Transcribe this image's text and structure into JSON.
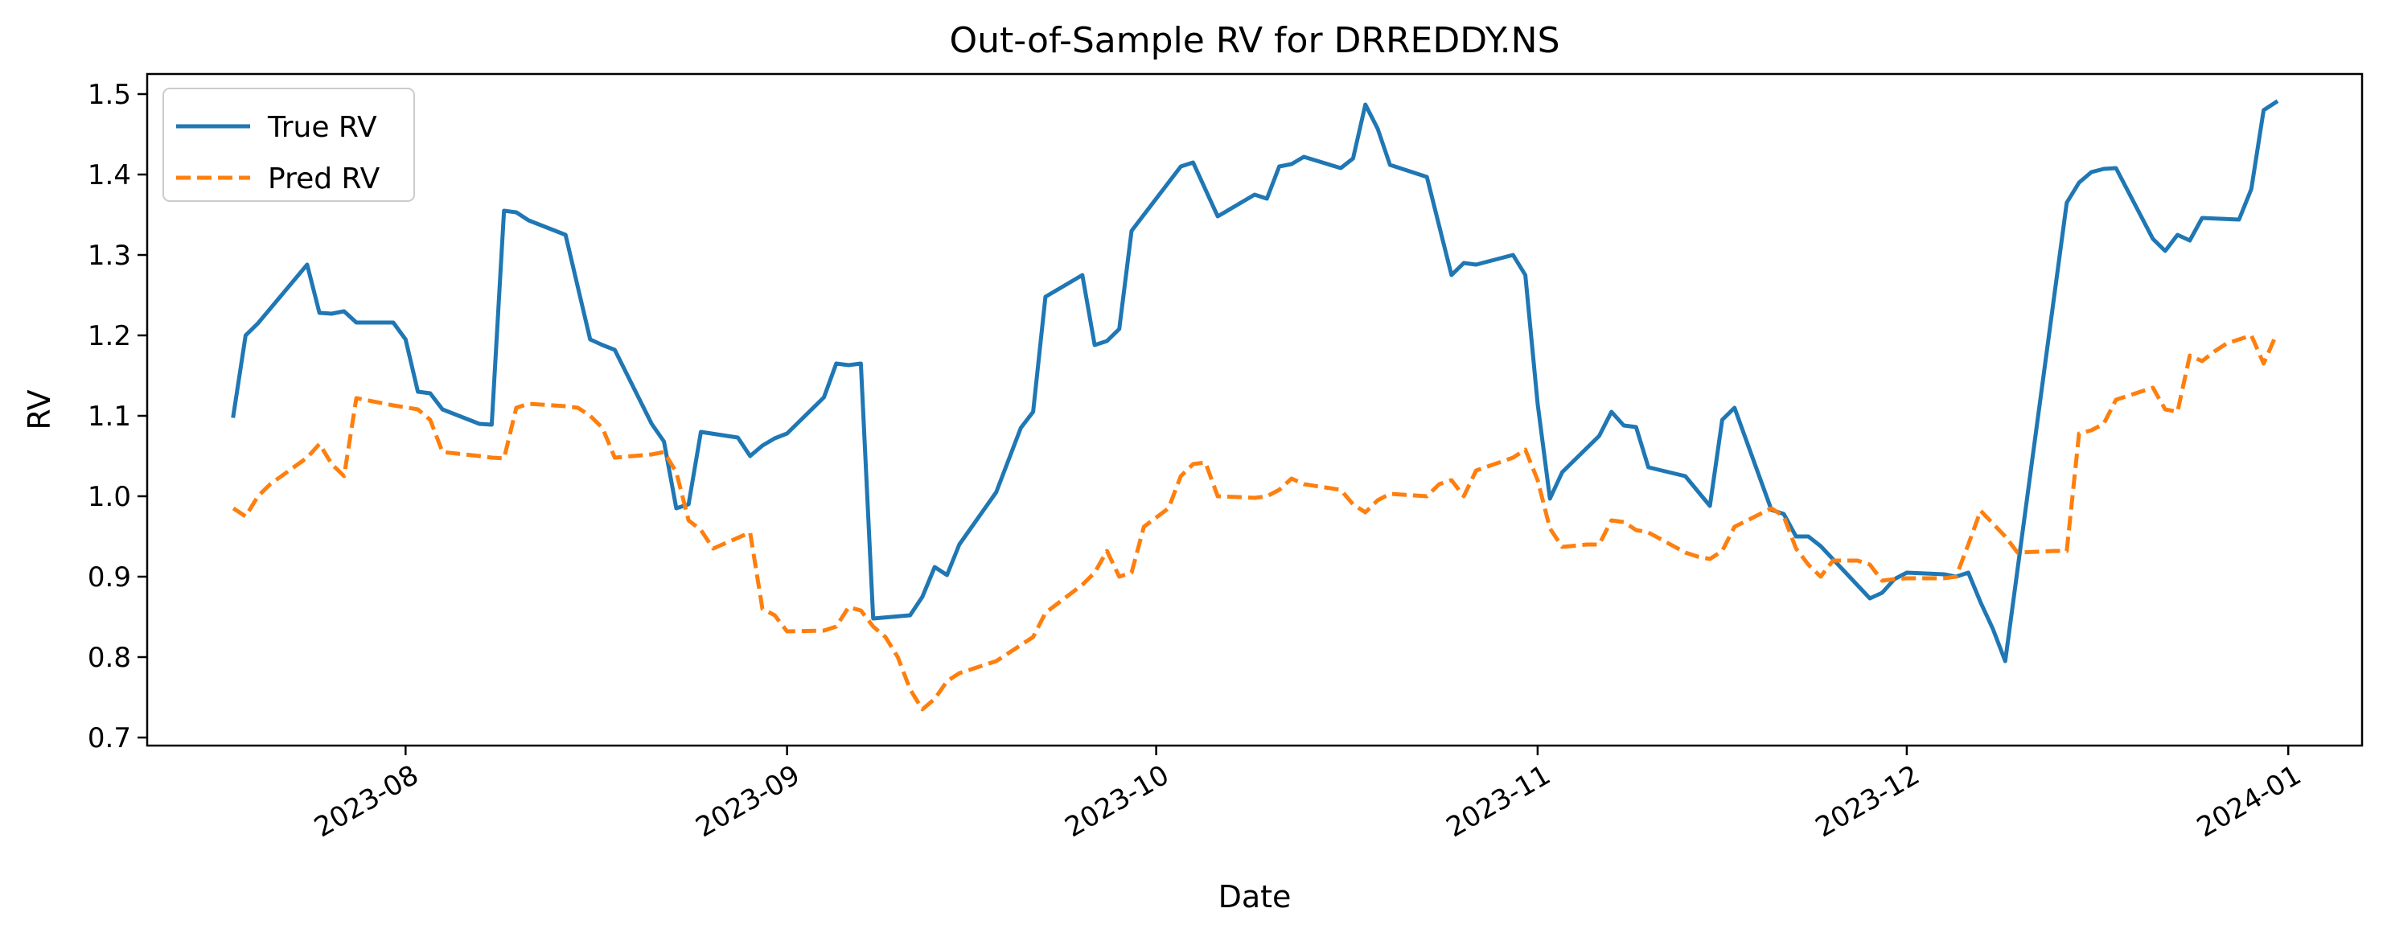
{
  "chart_data": {
    "type": "line",
    "title": "Out-of-Sample RV for DRREDDY.NS",
    "xlabel": "Date",
    "ylabel": "RV",
    "x_axis_type": "date",
    "xlim": [
      "2023-07-11",
      "2024-01-07"
    ],
    "ylim": [
      0.69,
      1.525
    ],
    "grid": false,
    "legend_position": "upper left",
    "x_ticks": [
      "2023-08-01",
      "2023-09-01",
      "2023-10-01",
      "2023-11-01",
      "2023-12-01",
      "2024-01-01"
    ],
    "x_tick_labels": [
      "2023-08",
      "2023-09",
      "2023-10",
      "2023-11",
      "2023-12",
      "2024-01"
    ],
    "y_ticks": [
      0.7,
      0.8,
      0.9,
      1.0,
      1.1,
      1.2,
      1.3,
      1.4,
      1.5
    ],
    "y_tick_labels": [
      "0.7",
      "0.8",
      "0.9",
      "1.0",
      "1.1",
      "1.2",
      "1.3",
      "1.4",
      "1.5"
    ],
    "series": [
      {
        "name": "True RV",
        "color": "#1f77b4",
        "style": "solid",
        "points": [
          [
            "2023-07-18",
            1.1
          ],
          [
            "2023-07-19",
            1.2
          ],
          [
            "2023-07-20",
            1.215
          ],
          [
            "2023-07-24",
            1.288
          ],
          [
            "2023-07-25",
            1.228
          ],
          [
            "2023-07-26",
            1.227
          ],
          [
            "2023-07-27",
            1.23
          ],
          [
            "2023-07-28",
            1.216
          ],
          [
            "2023-07-31",
            1.216
          ],
          [
            "2023-08-01",
            1.195
          ],
          [
            "2023-08-02",
            1.13
          ],
          [
            "2023-08-03",
            1.128
          ],
          [
            "2023-08-04",
            1.108
          ],
          [
            "2023-08-07",
            1.09
          ],
          [
            "2023-08-08",
            1.089
          ],
          [
            "2023-08-09",
            1.355
          ],
          [
            "2023-08-10",
            1.353
          ],
          [
            "2023-08-11",
            1.343
          ],
          [
            "2023-08-14",
            1.325
          ],
          [
            "2023-08-16",
            1.195
          ],
          [
            "2023-08-17",
            1.188
          ],
          [
            "2023-08-18",
            1.182
          ],
          [
            "2023-08-21",
            1.09
          ],
          [
            "2023-08-22",
            1.068
          ],
          [
            "2023-08-23",
            0.985
          ],
          [
            "2023-08-24",
            0.99
          ],
          [
            "2023-08-25",
            1.08
          ],
          [
            "2023-08-28",
            1.073
          ],
          [
            "2023-08-29",
            1.05
          ],
          [
            "2023-08-30",
            1.063
          ],
          [
            "2023-08-31",
            1.072
          ],
          [
            "2023-09-01",
            1.078
          ],
          [
            "2023-09-04",
            1.123
          ],
          [
            "2023-09-05",
            1.165
          ],
          [
            "2023-09-06",
            1.163
          ],
          [
            "2023-09-07",
            1.165
          ],
          [
            "2023-09-08",
            0.848
          ],
          [
            "2023-09-11",
            0.852
          ],
          [
            "2023-09-12",
            0.875
          ],
          [
            "2023-09-13",
            0.912
          ],
          [
            "2023-09-14",
            0.902
          ],
          [
            "2023-09-15",
            0.94
          ],
          [
            "2023-09-18",
            1.005
          ],
          [
            "2023-09-20",
            1.085
          ],
          [
            "2023-09-21",
            1.105
          ],
          [
            "2023-09-22",
            1.248
          ],
          [
            "2023-09-25",
            1.275
          ],
          [
            "2023-09-26",
            1.188
          ],
          [
            "2023-09-27",
            1.193
          ],
          [
            "2023-09-28",
            1.208
          ],
          [
            "2023-09-29",
            1.33
          ],
          [
            "2023-10-03",
            1.41
          ],
          [
            "2023-10-04",
            1.415
          ],
          [
            "2023-10-06",
            1.348
          ],
          [
            "2023-10-09",
            1.375
          ],
          [
            "2023-10-10",
            1.37
          ],
          [
            "2023-10-11",
            1.41
          ],
          [
            "2023-10-12",
            1.413
          ],
          [
            "2023-10-13",
            1.422
          ],
          [
            "2023-10-16",
            1.408
          ],
          [
            "2023-10-17",
            1.42
          ],
          [
            "2023-10-18",
            1.487
          ],
          [
            "2023-10-19",
            1.457
          ],
          [
            "2023-10-20",
            1.412
          ],
          [
            "2023-10-23",
            1.397
          ],
          [
            "2023-10-25",
            1.275
          ],
          [
            "2023-10-26",
            1.29
          ],
          [
            "2023-10-27",
            1.288
          ],
          [
            "2023-10-30",
            1.3
          ],
          [
            "2023-10-31",
            1.275
          ],
          [
            "2023-11-01",
            1.115
          ],
          [
            "2023-11-02",
            0.997
          ],
          [
            "2023-11-03",
            1.03
          ],
          [
            "2023-11-06",
            1.075
          ],
          [
            "2023-11-07",
            1.105
          ],
          [
            "2023-11-08",
            1.088
          ],
          [
            "2023-11-09",
            1.086
          ],
          [
            "2023-11-10",
            1.036
          ],
          [
            "2023-11-13",
            1.025
          ],
          [
            "2023-11-15",
            0.988
          ],
          [
            "2023-11-16",
            1.095
          ],
          [
            "2023-11-17",
            1.11
          ],
          [
            "2023-11-20",
            0.983
          ],
          [
            "2023-11-21",
            0.978
          ],
          [
            "2023-11-22",
            0.95
          ],
          [
            "2023-11-23",
            0.95
          ],
          [
            "2023-11-24",
            0.938
          ],
          [
            "2023-11-28",
            0.873
          ],
          [
            "2023-11-29",
            0.88
          ],
          [
            "2023-11-30",
            0.897
          ],
          [
            "2023-12-01",
            0.905
          ],
          [
            "2023-12-04",
            0.903
          ],
          [
            "2023-12-05",
            0.9
          ],
          [
            "2023-12-06",
            0.905
          ],
          [
            "2023-12-07",
            0.868
          ],
          [
            "2023-12-08",
            0.835
          ],
          [
            "2023-12-09",
            0.795
          ],
          [
            "2023-12-14",
            1.365
          ],
          [
            "2023-12-15",
            1.39
          ],
          [
            "2023-12-16",
            1.403
          ],
          [
            "2023-12-17",
            1.407
          ],
          [
            "2023-12-18",
            1.408
          ],
          [
            "2023-12-21",
            1.32
          ],
          [
            "2023-12-22",
            1.305
          ],
          [
            "2023-12-23",
            1.325
          ],
          [
            "2023-12-24",
            1.318
          ],
          [
            "2023-12-25",
            1.346
          ],
          [
            "2023-12-28",
            1.344
          ],
          [
            "2023-12-29",
            1.382
          ],
          [
            "2023-12-30",
            1.48
          ],
          [
            "2023-12-31",
            1.49
          ]
        ]
      },
      {
        "name": "Pred RV",
        "color": "#ff7f0e",
        "style": "dashed",
        "points": [
          [
            "2023-07-18",
            0.985
          ],
          [
            "2023-07-19",
            0.975
          ],
          [
            "2023-07-20",
            1.0
          ],
          [
            "2023-07-21",
            1.015
          ],
          [
            "2023-07-24",
            1.048
          ],
          [
            "2023-07-25",
            1.065
          ],
          [
            "2023-07-26",
            1.04
          ],
          [
            "2023-07-27",
            1.025
          ],
          [
            "2023-07-28",
            1.122
          ],
          [
            "2023-07-31",
            1.113
          ],
          [
            "2023-08-02",
            1.108
          ],
          [
            "2023-08-03",
            1.095
          ],
          [
            "2023-08-04",
            1.055
          ],
          [
            "2023-08-07",
            1.05
          ],
          [
            "2023-08-08",
            1.048
          ],
          [
            "2023-08-09",
            1.047
          ],
          [
            "2023-08-10",
            1.11
          ],
          [
            "2023-08-11",
            1.115
          ],
          [
            "2023-08-14",
            1.112
          ],
          [
            "2023-08-15",
            1.11
          ],
          [
            "2023-08-16",
            1.1
          ],
          [
            "2023-08-17",
            1.085
          ],
          [
            "2023-08-18",
            1.048
          ],
          [
            "2023-08-21",
            1.052
          ],
          [
            "2023-08-22",
            1.055
          ],
          [
            "2023-08-23",
            1.03
          ],
          [
            "2023-08-24",
            0.97
          ],
          [
            "2023-08-25",
            0.958
          ],
          [
            "2023-08-26",
            0.935
          ],
          [
            "2023-08-29",
            0.955
          ],
          [
            "2023-08-30",
            0.86
          ],
          [
            "2023-08-31",
            0.852
          ],
          [
            "2023-09-01",
            0.832
          ],
          [
            "2023-09-04",
            0.833
          ],
          [
            "2023-09-05",
            0.838
          ],
          [
            "2023-09-06",
            0.862
          ],
          [
            "2023-09-07",
            0.858
          ],
          [
            "2023-09-08",
            0.838
          ],
          [
            "2023-09-09",
            0.825
          ],
          [
            "2023-09-10",
            0.8
          ],
          [
            "2023-09-11",
            0.76
          ],
          [
            "2023-09-12",
            0.735
          ],
          [
            "2023-09-13",
            0.748
          ],
          [
            "2023-09-14",
            0.77
          ],
          [
            "2023-09-15",
            0.78
          ],
          [
            "2023-09-18",
            0.795
          ],
          [
            "2023-09-20",
            0.815
          ],
          [
            "2023-09-21",
            0.825
          ],
          [
            "2023-09-22",
            0.855
          ],
          [
            "2023-09-25",
            0.89
          ],
          [
            "2023-09-26",
            0.905
          ],
          [
            "2023-09-27",
            0.932
          ],
          [
            "2023-09-28",
            0.9
          ],
          [
            "2023-09-29",
            0.905
          ],
          [
            "2023-09-30",
            0.962
          ],
          [
            "2023-10-02",
            0.985
          ],
          [
            "2023-10-03",
            1.025
          ],
          [
            "2023-10-04",
            1.04
          ],
          [
            "2023-10-05",
            1.042
          ],
          [
            "2023-10-06",
            1.0
          ],
          [
            "2023-10-09",
            0.998
          ],
          [
            "2023-10-10",
            1.0
          ],
          [
            "2023-10-11",
            1.008
          ],
          [
            "2023-10-12",
            1.022
          ],
          [
            "2023-10-13",
            1.015
          ],
          [
            "2023-10-16",
            1.008
          ],
          [
            "2023-10-17",
            0.99
          ],
          [
            "2023-10-18",
            0.98
          ],
          [
            "2023-10-19",
            0.995
          ],
          [
            "2023-10-20",
            1.003
          ],
          [
            "2023-10-23",
            1.0
          ],
          [
            "2023-10-24",
            1.015
          ],
          [
            "2023-10-25",
            1.02
          ],
          [
            "2023-10-26",
            1.0
          ],
          [
            "2023-10-27",
            1.032
          ],
          [
            "2023-10-30",
            1.048
          ],
          [
            "2023-10-31",
            1.058
          ],
          [
            "2023-11-01",
            1.02
          ],
          [
            "2023-11-02",
            0.96
          ],
          [
            "2023-11-03",
            0.937
          ],
          [
            "2023-11-05",
            0.94
          ],
          [
            "2023-11-06",
            0.94
          ],
          [
            "2023-11-07",
            0.97
          ],
          [
            "2023-11-08",
            0.968
          ],
          [
            "2023-11-09",
            0.958
          ],
          [
            "2023-11-10",
            0.955
          ],
          [
            "2023-11-13",
            0.93
          ],
          [
            "2023-11-14",
            0.925
          ],
          [
            "2023-11-15",
            0.922
          ],
          [
            "2023-11-16",
            0.932
          ],
          [
            "2023-11-17",
            0.962
          ],
          [
            "2023-11-20",
            0.985
          ],
          [
            "2023-11-21",
            0.975
          ],
          [
            "2023-11-22",
            0.935
          ],
          [
            "2023-11-23",
            0.915
          ],
          [
            "2023-11-24",
            0.9
          ],
          [
            "2023-11-25",
            0.92
          ],
          [
            "2023-11-27",
            0.92
          ],
          [
            "2023-11-28",
            0.915
          ],
          [
            "2023-11-29",
            0.895
          ],
          [
            "2023-11-30",
            0.897
          ],
          [
            "2023-12-01",
            0.898
          ],
          [
            "2023-12-04",
            0.898
          ],
          [
            "2023-12-05",
            0.9
          ],
          [
            "2023-12-06",
            0.94
          ],
          [
            "2023-12-07",
            0.982
          ],
          [
            "2023-12-09",
            0.95
          ],
          [
            "2023-12-10",
            0.93
          ],
          [
            "2023-12-13",
            0.932
          ],
          [
            "2023-12-14",
            0.932
          ],
          [
            "2023-12-15",
            1.078
          ],
          [
            "2023-12-16",
            1.082
          ],
          [
            "2023-12-17",
            1.09
          ],
          [
            "2023-12-18",
            1.12
          ],
          [
            "2023-12-20",
            1.13
          ],
          [
            "2023-12-21",
            1.135
          ],
          [
            "2023-12-22",
            1.108
          ],
          [
            "2023-12-23",
            1.105
          ],
          [
            "2023-12-24",
            1.175
          ],
          [
            "2023-12-25",
            1.168
          ],
          [
            "2023-12-26",
            1.18
          ],
          [
            "2023-12-27",
            1.19
          ],
          [
            "2023-12-28",
            1.195
          ],
          [
            "2023-12-29",
            1.2
          ],
          [
            "2023-12-30",
            1.165
          ],
          [
            "2023-12-31",
            1.2
          ]
        ]
      }
    ]
  }
}
